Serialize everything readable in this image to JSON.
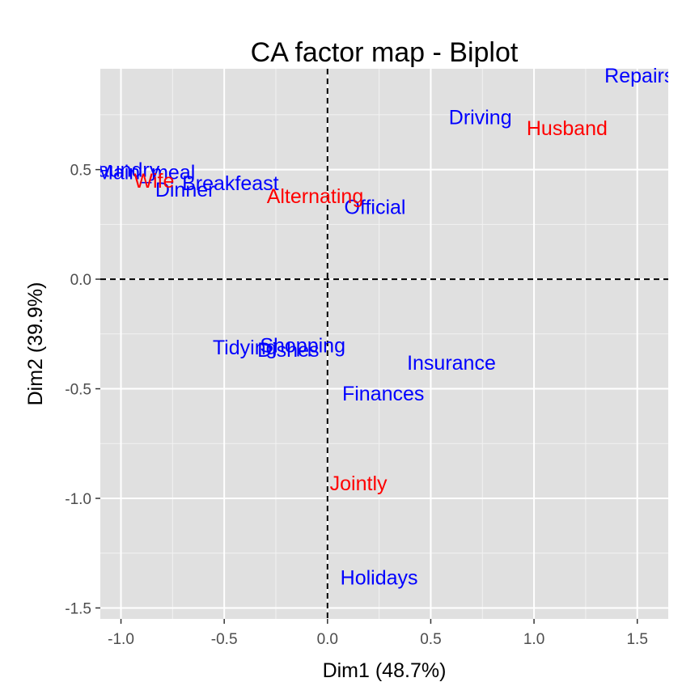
{
  "chart_data": {
    "type": "scatter",
    "title": "CA factor map - Biplot",
    "xlabel": "Dim1 (48.7%)",
    "ylabel": "Dim2 (39.9%)",
    "xlim": [
      -1.1,
      1.65
    ],
    "ylim": [
      -1.55,
      0.96
    ],
    "x_ticks": [
      -1.0,
      -0.5,
      0.0,
      0.5,
      1.0,
      1.5
    ],
    "x_tick_labels": [
      "-1.0",
      "-0.5",
      "0.0",
      "0.5",
      "1.0",
      "1.5"
    ],
    "y_ticks": [
      -1.5,
      -1.0,
      -0.5,
      0.0,
      0.5
    ],
    "y_tick_labels": [
      "-1.5",
      "-1.0",
      "-0.5",
      "0.0",
      "0.5"
    ],
    "reference_lines": {
      "x": 0,
      "y": 0
    },
    "colors": {
      "panel_bg": "#e0e0e0",
      "grid": "#ffffff",
      "row_points": "#0000ff",
      "col_points": "#ff0000",
      "ref_line": "#000000"
    },
    "series": [
      {
        "name": "rows",
        "color": "#0000ff",
        "points": [
          {
            "label": "Laundry",
            "x": -0.99,
            "y": 0.5
          },
          {
            "label": "Main_meal",
            "x": -0.88,
            "y": 0.49
          },
          {
            "label": "Breakfeast",
            "x": -0.47,
            "y": 0.44
          },
          {
            "label": "Dinner",
            "x": -0.69,
            "y": 0.41
          },
          {
            "label": "Tidying",
            "x": -0.4,
            "y": -0.31
          },
          {
            "label": "Dishes",
            "x": -0.19,
            "y": -0.32
          },
          {
            "label": "Shopping",
            "x": -0.12,
            "y": -0.3
          },
          {
            "label": "Official",
            "x": 0.23,
            "y": 0.33
          },
          {
            "label": "Driving",
            "x": 0.74,
            "y": 0.74
          },
          {
            "label": "Finances",
            "x": 0.27,
            "y": -0.52
          },
          {
            "label": "Insurance",
            "x": 0.6,
            "y": -0.38
          },
          {
            "label": "Repairs",
            "x": 1.51,
            "y": 0.93
          },
          {
            "label": "Holidays",
            "x": 0.25,
            "y": -1.36
          }
        ]
      },
      {
        "name": "columns",
        "color": "#ff0000",
        "points": [
          {
            "label": "Wife",
            "x": -0.84,
            "y": 0.45
          },
          {
            "label": "Alternating",
            "x": -0.06,
            "y": 0.38
          },
          {
            "label": "Husband",
            "x": 1.16,
            "y": 0.69
          },
          {
            "label": "Jointly",
            "x": 0.15,
            "y": -0.93
          }
        ]
      }
    ]
  }
}
